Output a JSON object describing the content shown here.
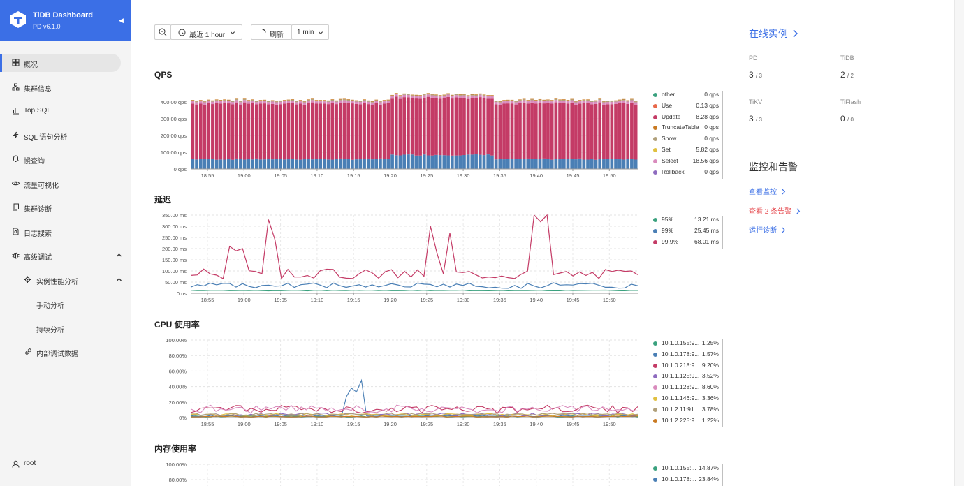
{
  "brand": {
    "title": "TiDB Dashboard",
    "version": "PD v6.1.0"
  },
  "nav": {
    "overview": "概况",
    "cluster_info": "集群信息",
    "top_sql": "Top SQL",
    "sql_statements": "SQL 语句分析",
    "slow_query": "慢查询",
    "key_viz": "流量可视化",
    "diagnose": "集群诊断",
    "log_search": "日志搜索",
    "advanced_debug": "高级调试",
    "instance_profiling": "实例性能分析",
    "manual_profiling": "手动分析",
    "continuous_profiling": "持续分析",
    "debug_api": "内部调试数据"
  },
  "user": {
    "name": "root"
  },
  "toolbar": {
    "time_range": "最近 1 hour",
    "refresh": "刷新",
    "interval": "1 min"
  },
  "panels": {
    "qps": {
      "title": "QPS"
    },
    "latency": {
      "title": "延迟"
    },
    "cpu": {
      "title": "CPU 使用率"
    },
    "memory": {
      "title": "内存使用率"
    }
  },
  "x_ticks": [
    "18:55",
    "19:00",
    "19:05",
    "19:10",
    "19:15",
    "19:20",
    "19:25",
    "19:30",
    "19:35",
    "19:40",
    "19:45",
    "19:50"
  ],
  "colors": {
    "accent": "#3b6fe6",
    "warn": "#e5484d"
  },
  "chart_data": [
    {
      "type": "bar",
      "stacked": true,
      "title": "QPS",
      "y_ticks": [
        "0 qps",
        "100.00 qps",
        "200.00 qps",
        "300.00 qps",
        "400.00 qps"
      ],
      "ylim": [
        0,
        470
      ],
      "series": [
        {
          "name": "other",
          "value": "0 qps",
          "color": "#3aa17e"
        },
        {
          "name": "Use",
          "value": "0.13 qps",
          "color": "#e8684a"
        },
        {
          "name": "Update",
          "value": "8.28 qps",
          "color": "#c43b66"
        },
        {
          "name": "TruncateTable",
          "value": "0 qps",
          "color": "#c97a22"
        },
        {
          "name": "Show",
          "value": "0 qps",
          "color": "#b0a07a"
        },
        {
          "name": "Set",
          "value": "5.82 qps",
          "color": "#e0c040"
        },
        {
          "name": "Select",
          "value": "18.56 qps",
          "color": "#d98bbd"
        },
        {
          "name": "Rollback",
          "value": "0 qps",
          "color": "#8e6bbf"
        }
      ]
    },
    {
      "type": "line",
      "title": "延迟",
      "y_ticks": [
        "0 ns",
        "50.00 ms",
        "100.00 ms",
        "150.00 ms",
        "200.00 ms",
        "250.00 ms",
        "300.00 ms",
        "350.00 ms"
      ],
      "ylim": [
        0,
        350
      ],
      "series": [
        {
          "name": "95%",
          "value": "13.21 ms",
          "color": "#3aa17e"
        },
        {
          "name": "99%",
          "value": "25.45 ms",
          "color": "#4a7fb5"
        },
        {
          "name": "99.9%",
          "value": "68.01 ms",
          "color": "#c43b66"
        }
      ]
    },
    {
      "type": "line",
      "title": "CPU 使用率",
      "y_ticks": [
        "0%",
        "20.00%",
        "40.00%",
        "60.00%",
        "80.00%",
        "100.00%"
      ],
      "ylim": [
        0,
        100
      ],
      "series": [
        {
          "name": "10.1.0.155:9...",
          "value": "1.25%",
          "color": "#3aa17e"
        },
        {
          "name": "10.1.0.178:9...",
          "value": "1.57%",
          "color": "#4a7fb5"
        },
        {
          "name": "10.1.0.218:9...",
          "value": "9.20%",
          "color": "#c43b66"
        },
        {
          "name": "10.1.1.125:9...",
          "value": "3.52%",
          "color": "#8e6bbf"
        },
        {
          "name": "10.1.1.128:9...",
          "value": "8.60%",
          "color": "#d98bbd"
        },
        {
          "name": "10.1.1.146:9...",
          "value": "3.36%",
          "color": "#e0c040"
        },
        {
          "name": "10.1.2.11:91...",
          "value": "3.78%",
          "color": "#b0a07a"
        },
        {
          "name": "10.1.2.225:9...",
          "value": "1.22%",
          "color": "#c97a22"
        }
      ]
    },
    {
      "type": "line",
      "title": "内存使用率",
      "y_ticks": [
        "80.00%",
        "100.00%"
      ],
      "ylim": [
        0,
        100
      ],
      "series": [
        {
          "name": "10.1.0.155:...",
          "value": "14.87%",
          "color": "#3aa17e"
        },
        {
          "name": "10.1.0.178:...",
          "value": "23.84%",
          "color": "#4a7fb5"
        }
      ]
    }
  ],
  "right": {
    "instances_title": "在线实例",
    "instances": [
      {
        "label": "PD",
        "up": "3",
        "total": "/ 3"
      },
      {
        "label": "TiDB",
        "up": "2",
        "total": "/ 2"
      },
      {
        "label": "TiKV",
        "up": "3",
        "total": "/ 3"
      },
      {
        "label": "TiFlash",
        "up": "0",
        "total": "/ 0"
      }
    ],
    "monitor_title": "监控和告警",
    "view_metrics": "查看监控",
    "view_alerts": "查看 2 条告警",
    "diagnose": "运行诊断"
  }
}
